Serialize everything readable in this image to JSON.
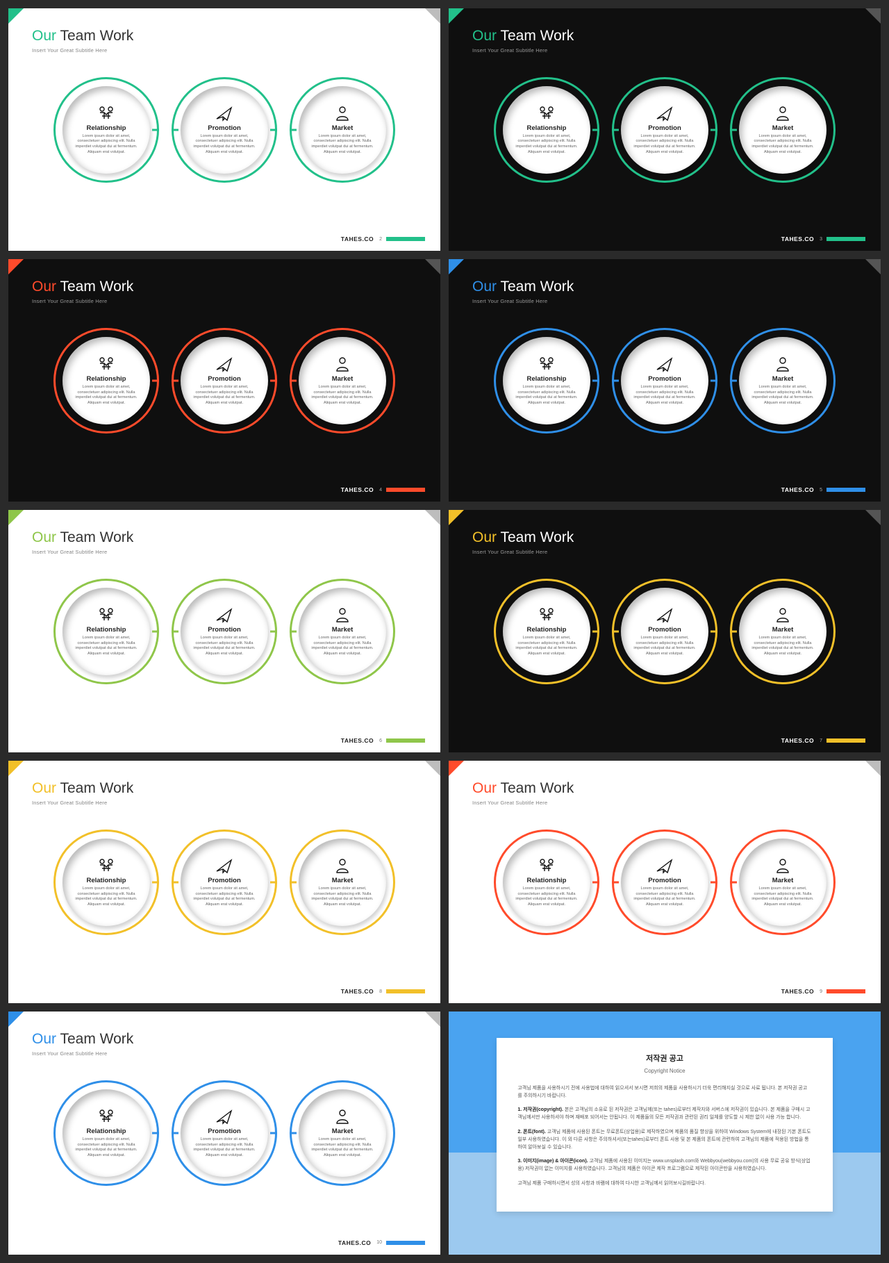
{
  "common": {
    "title_accent": "Our",
    "title_rest": "Team Work",
    "subtitle": "Insert Your Great Subtitle Here",
    "brand": "TAHES.CO",
    "item_desc": "Lorem ipsum dolor sit amet, consectetuer adipiscing elit. Nulla imperdiet volutpat dui at fermentum. Aliquam erat volutpat.",
    "items": [
      {
        "label": "Relationship",
        "icon": "handshake"
      },
      {
        "label": "Promotion",
        "icon": "paperplane"
      },
      {
        "label": "Market",
        "icon": "person"
      }
    ]
  },
  "slides": [
    {
      "bg": "light",
      "accent": "#22c08a",
      "page": "2"
    },
    {
      "bg": "dark",
      "accent": "#22c08a",
      "page": "3"
    },
    {
      "bg": "dark",
      "accent": "#ff4b2b",
      "page": "4"
    },
    {
      "bg": "dark",
      "accent": "#2f8fe8",
      "page": "5"
    },
    {
      "bg": "light",
      "accent": "#8fc64a",
      "page": "6"
    },
    {
      "bg": "dark",
      "accent": "#f2c029",
      "page": "7"
    },
    {
      "bg": "light",
      "accent": "#f2c029",
      "page": "8"
    },
    {
      "bg": "light",
      "accent": "#ff4b2b",
      "page": "9"
    },
    {
      "bg": "light",
      "accent": "#2f8fe8",
      "page": "10"
    }
  ],
  "copyright": {
    "title_ko": "저작권 공고",
    "title_en": "Copyright Notice",
    "intro": "고객님 제품을 사용하시기 전에 사용법에 대하여 읽으셔서 보시면 저희의 제품을 사용하시기 더욱 편리해지실 것으로 사료 됩니다. 본 저작권 공고를 주의하시기 바랍니다.",
    "para1_title": "1. 저작권(copyright).",
    "para1": "본은 고객님의 소유로 된 저작권은 고객님께(또는 tahes)로부터 제작자와 서버스에 저작권이 있습니다. 본 제품을 구매시 고객님께서만 사용하셔야 하며 재배포 되어서는 안됩니다. 이 제품들의 모든 저작권과 관련된 권리 일체를 양도할 시 제한 없이 사용 가능 합니다.",
    "para2_title": "2. 폰트(font).",
    "para2": "고객님 제품에 사용된 폰트는 무료폰트(상업용)로 제작하였으며 제품의 품질 향상을 위하여 Windows System에 내장된 기본 폰트도 일부 사용하였습니다. 이 외 다른 사항은 주의하셔서(또는tahes)로부터 폰트 사용 및 본 제품의 폰트에 관련하여 고객님의 제품에 적용된 방법을 통하여 알아보실 수 있습니다.",
    "para3_title": "3. 이미지(image) & 아이콘(icon).",
    "para3": "고객님 제품에 사용된 이미지는 www.unsplash.com와 Webbyou(webbyou.com)의 사용 무료 공유 방식(상업용) 저작권이 없는 이미지를 사용하였습니다. 고객님의 제품은 아이콘 제작 프로그램으로 제작된 아이콘만을 사용하였습니다.",
    "outro": "고객님 제품 구매하시면서 성의 사항과 바램에 대하여 다시한 고객님께서 읽어보시길바랍니다."
  }
}
